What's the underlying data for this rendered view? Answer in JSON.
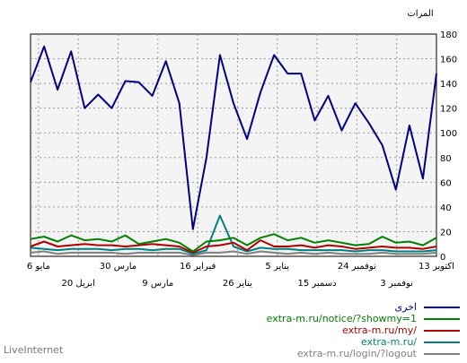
{
  "brand": "LiveInternet",
  "chart_data": {
    "type": "line",
    "ylabel": "المرات",
    "ylim": [
      0,
      180
    ],
    "yticks": [
      0,
      20,
      40,
      60,
      80,
      100,
      120,
      140,
      160,
      180
    ],
    "x_top_labels": [
      "13 اكتوبر",
      "24 نوفمبر",
      "5 يناير",
      "16 فبراير",
      "30 مارس",
      "6 مايو"
    ],
    "x_bottom_labels": [
      "3 نوفمبر",
      "15 دسمبر",
      "26 يناير",
      "9 مارس",
      "20 ابريل"
    ],
    "grid": true,
    "legend_position": "bottom-right",
    "series": [
      {
        "name": "اخرى",
        "color": "#000080",
        "values": [
          148,
          63,
          106,
          54,
          90,
          108,
          124,
          102,
          130,
          110,
          148,
          148,
          163,
          133,
          95,
          124,
          163,
          80,
          22,
          124,
          158,
          130,
          141,
          142,
          120,
          131,
          120,
          166,
          135,
          170,
          141
        ]
      },
      {
        "name": "extra-m.ru/notice/?showmy=1",
        "color": "#008000",
        "values": [
          15,
          9,
          12,
          11,
          16,
          10,
          9,
          11,
          13,
          11,
          15,
          13,
          18,
          15,
          9,
          15,
          13,
          12,
          4,
          11,
          14,
          12,
          10,
          17,
          12,
          14,
          13,
          17,
          12,
          16,
          14
        ]
      },
      {
        "name": "extra-m.ru/my/",
        "color": "#b00000",
        "values": [
          8,
          6,
          7,
          7,
          8,
          7,
          6,
          8,
          9,
          7,
          9,
          8,
          8,
          13,
          5,
          11,
          9,
          8,
          3,
          8,
          9,
          10,
          9,
          8,
          9,
          9,
          10,
          9,
          8,
          12,
          8
        ]
      },
      {
        "name": "extra-m.ru/",
        "color": "#008080",
        "values": [
          5,
          4,
          4,
          4,
          5,
          5,
          4,
          5,
          5,
          5,
          5,
          6,
          6,
          7,
          4,
          8,
          33,
          5,
          2,
          6,
          6,
          5,
          6,
          6,
          5,
          6,
          6,
          6,
          5,
          6,
          7
        ]
      },
      {
        "name": "extra-m.ru/login/?logout",
        "color": "#808080",
        "values": [
          3,
          2,
          2,
          2,
          3,
          2,
          2,
          2,
          3,
          2,
          3,
          2,
          3,
          4,
          2,
          4,
          3,
          3,
          1,
          3,
          3,
          3,
          3,
          2,
          3,
          3,
          3,
          3,
          2,
          4,
          3
        ]
      }
    ]
  }
}
